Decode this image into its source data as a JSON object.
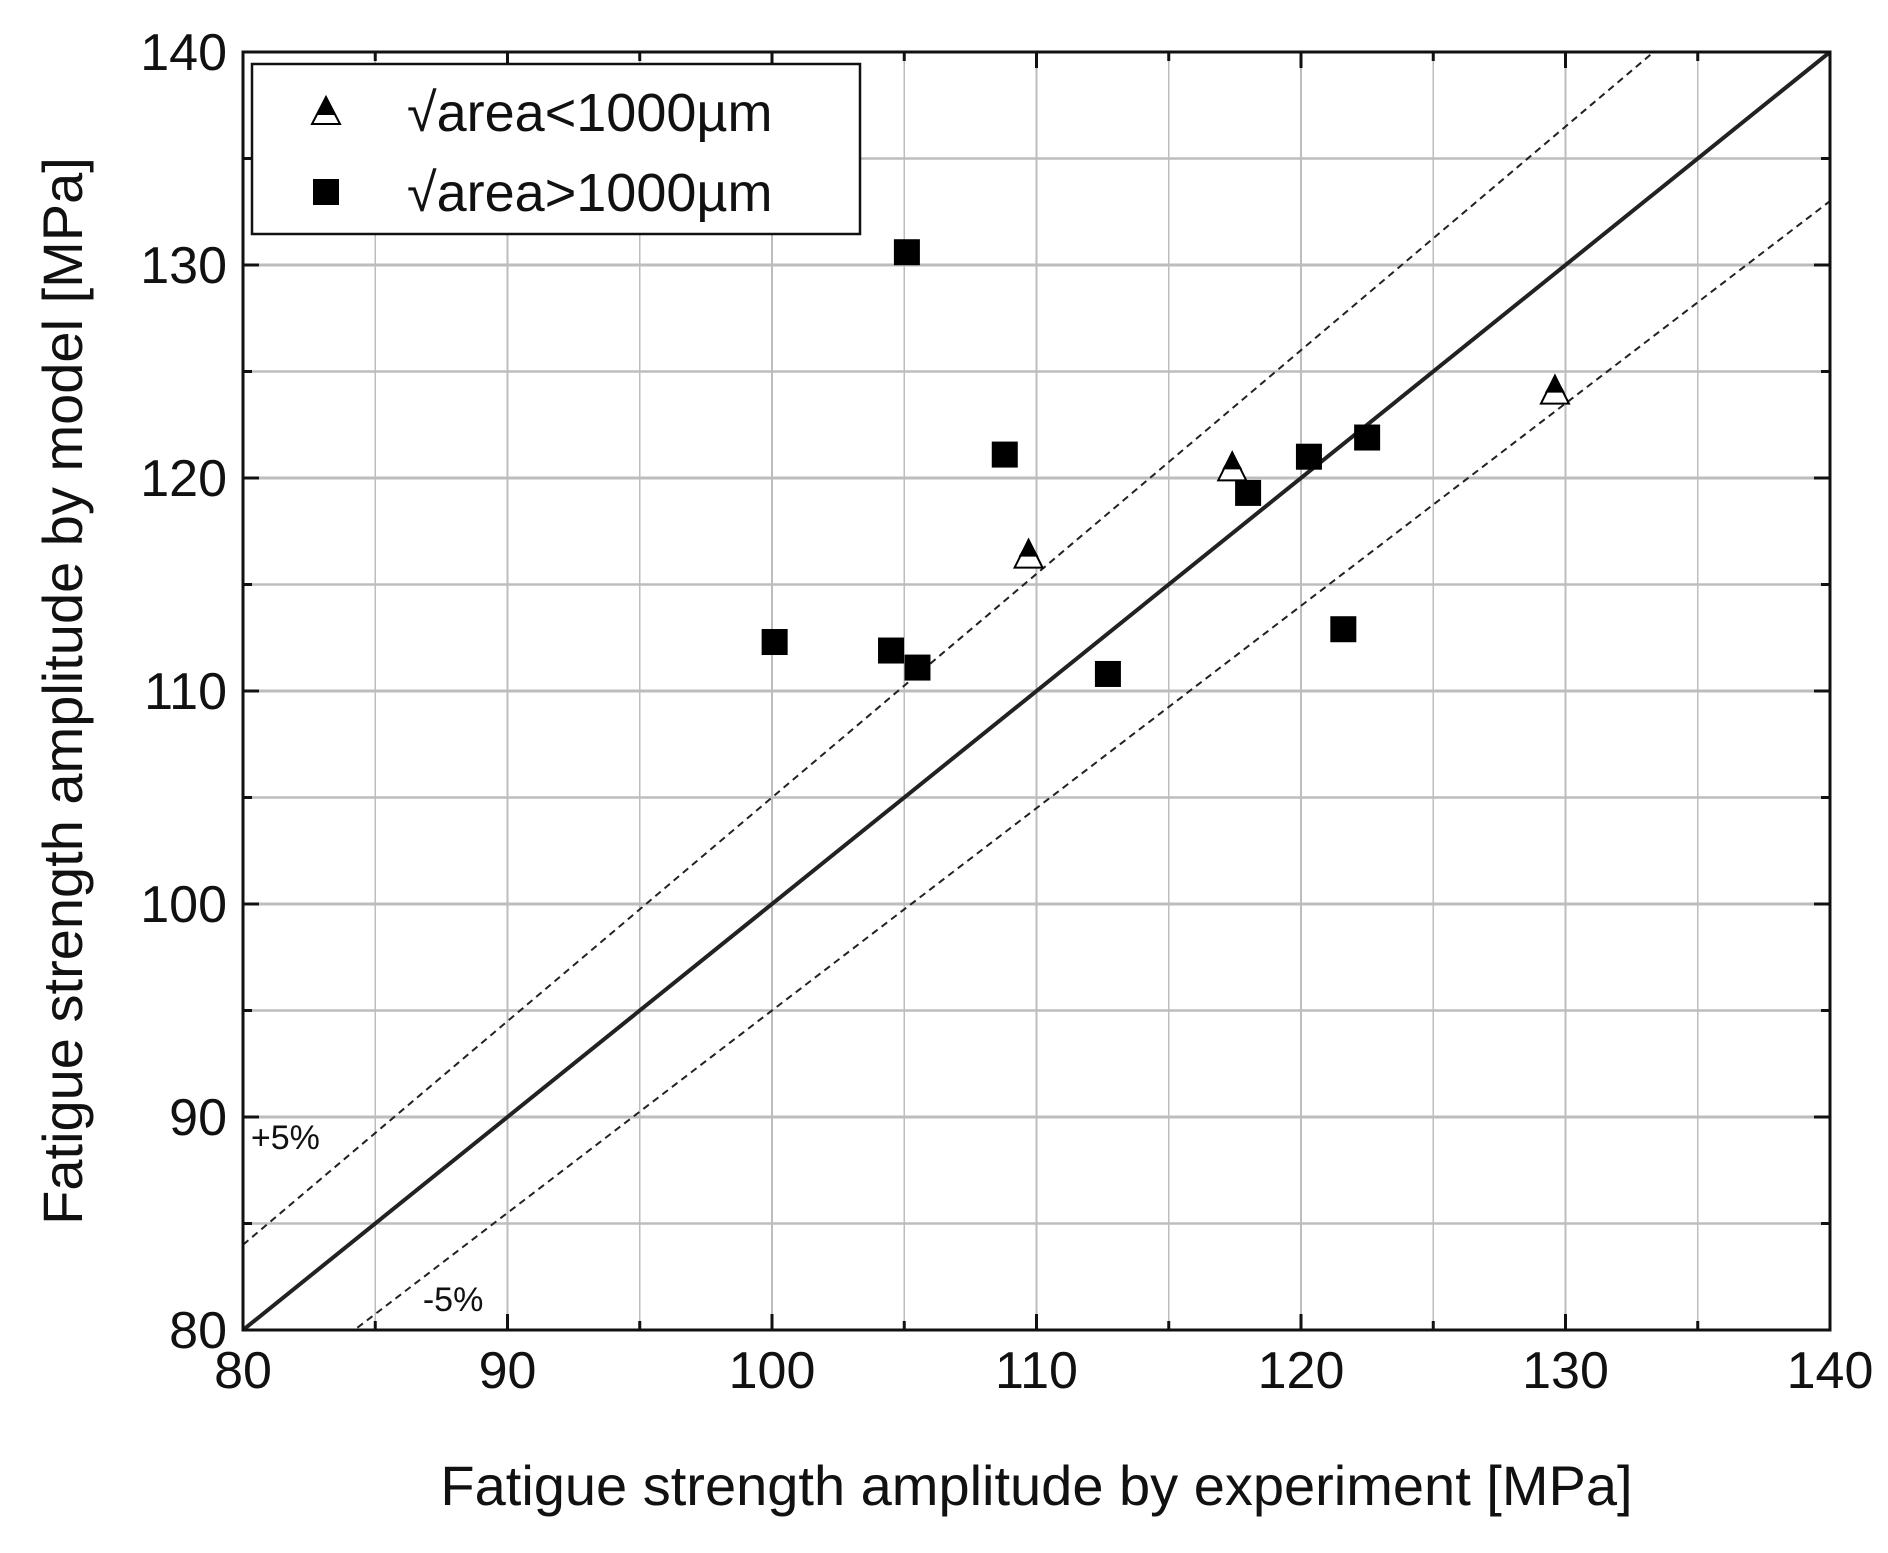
{
  "chart_data": {
    "type": "scatter",
    "title": "",
    "xlabel": "Fatigue strength amplitude by experiment [MPa]",
    "ylabel": "Fatigue strength amplitude by model [MPa]",
    "xlim": [
      80,
      140
    ],
    "ylim": [
      80,
      140
    ],
    "x_ticks": [
      80,
      90,
      100,
      110,
      120,
      130,
      140
    ],
    "y_ticks": [
      80,
      90,
      100,
      110,
      120,
      130,
      140
    ],
    "minor_step": 5,
    "grid": true,
    "legend_position": "top-left",
    "series": [
      {
        "name": "√area<1000µm",
        "marker": "triangle",
        "x": [
          109.7,
          117.4,
          129.6
        ],
        "y": [
          116.4,
          120.5,
          124.1
        ]
      },
      {
        "name": "√area>1000µm",
        "marker": "square",
        "x": [
          105.1,
          108.8,
          100.1,
          104.5,
          105.5,
          112.7,
          118.0,
          120.3,
          122.5,
          121.6
        ],
        "y": [
          130.6,
          121.1,
          112.3,
          111.9,
          111.1,
          110.8,
          119.3,
          121.0,
          121.9,
          112.9
        ]
      }
    ],
    "reference_lines": [
      {
        "name": "y = x",
        "slope": 1.0,
        "style": "solid"
      },
      {
        "name": "+5%",
        "slope": 1.05,
        "style": "dashed",
        "label": "+5%"
      },
      {
        "name": "-5%",
        "slope": 0.95,
        "style": "dashed",
        "label": "-5%"
      }
    ],
    "colors": {
      "marker": "#000000",
      "grid": "#bdbdbd",
      "axis": "#111111"
    }
  }
}
